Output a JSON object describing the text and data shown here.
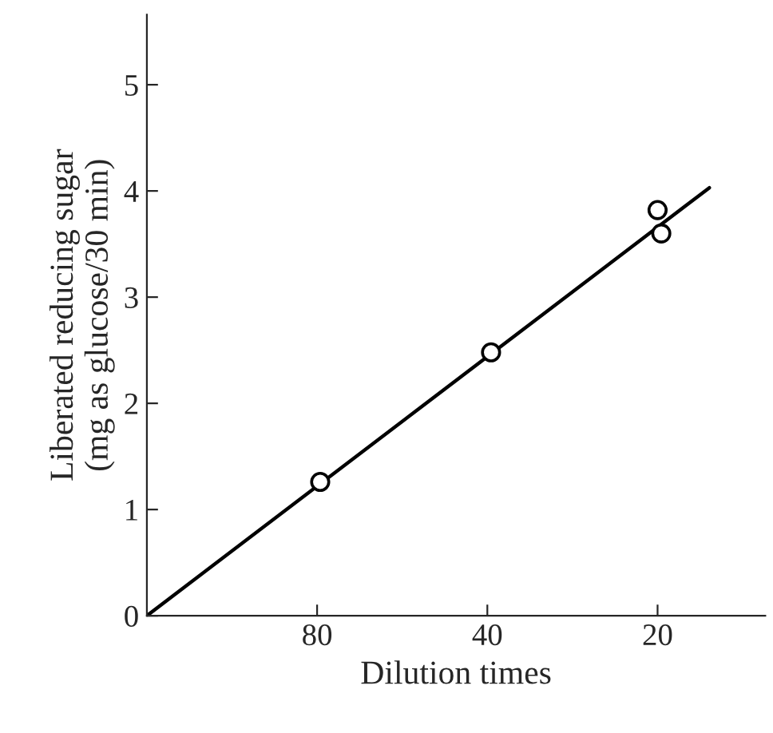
{
  "chart_data": {
    "type": "scatter",
    "xlabel": "Dilution times",
    "ylabel": "Liberated reducing sugar\n(mg as glucose/30 min)",
    "log": "x",
    "xlim": [
      160,
      12.9
    ],
    "ylim": [
      0,
      5.66
    ],
    "xticks": [
      80,
      40,
      20
    ],
    "yticks": [
      0,
      1,
      2,
      3,
      4,
      5
    ],
    "series": [
      {
        "color": "#000000",
        "marker": "circle",
        "x": [
          79,
          39.4,
          20,
          19.7
        ],
        "values": [
          1.26,
          2.48,
          3.82,
          3.6
        ]
      },
      {
        "type": "line",
        "color": "#000000",
        "line_style": "solid",
        "x": [
          160,
          16.2
        ],
        "values": [
          0,
          4.03
        ]
      }
    ]
  }
}
